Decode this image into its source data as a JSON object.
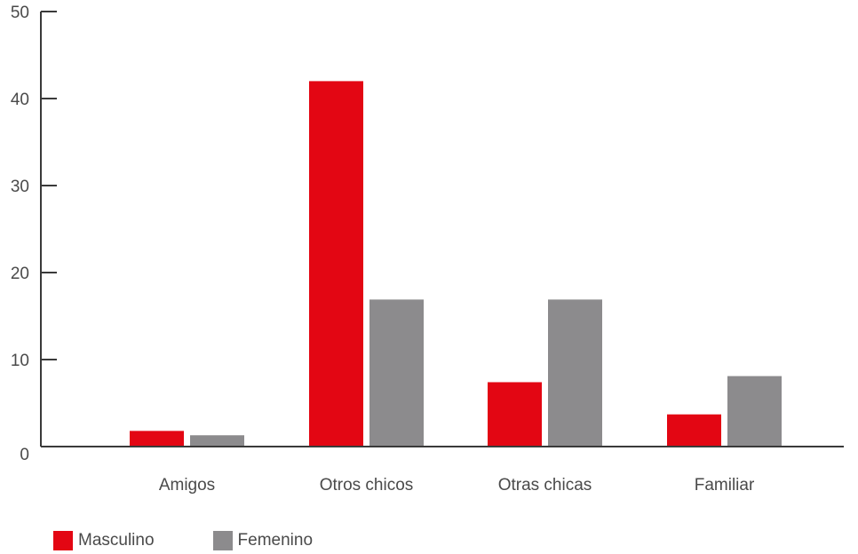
{
  "chart_data": {
    "type": "bar",
    "title": "",
    "xlabel": "",
    "ylabel": "",
    "categories": [
      "Amigos",
      "Otros chicos",
      "Otras chicas",
      "Familiar"
    ],
    "series": [
      {
        "name": "Masculino",
        "color": "#e30613",
        "values": [
          1.8,
          42,
          7.4,
          3.7
        ]
      },
      {
        "name": "Femenino",
        "color": "#8c8b8d",
        "values": [
          1.3,
          16.9,
          16.9,
          8.1
        ]
      }
    ],
    "ylim": [
      0,
      50
    ],
    "yticks": [
      "0",
      "10",
      "20",
      "30",
      "40",
      "50"
    ],
    "grid": false,
    "legend_position": "bottom-left"
  },
  "colors": {
    "axis": "#3a3a3a",
    "label": "#4a4a4a"
  }
}
